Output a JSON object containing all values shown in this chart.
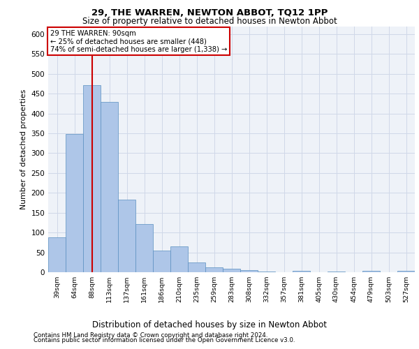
{
  "title1": "29, THE WARREN, NEWTON ABBOT, TQ12 1PP",
  "title2": "Size of property relative to detached houses in Newton Abbot",
  "xlabel": "Distribution of detached houses by size in Newton Abbot",
  "ylabel": "Number of detached properties",
  "footer1": "Contains HM Land Registry data © Crown copyright and database right 2024.",
  "footer2": "Contains public sector information licensed under the Open Government Licence v3.0.",
  "annotation_title": "29 THE WARREN: 90sqm",
  "annotation_line1": "← 25% of detached houses are smaller (448)",
  "annotation_line2": "74% of semi-detached houses are larger (1,338) →",
  "bar_color": "#aec6e8",
  "bar_edge_color": "#5a8fc0",
  "vline_color": "#cc0000",
  "vline_x": 2.0,
  "annotation_box_color": "#ffffff",
  "annotation_box_edge": "#cc0000",
  "grid_color": "#d0d8e8",
  "background_color": "#eef2f8",
  "categories": [
    "39sqm",
    "64sqm",
    "88sqm",
    "113sqm",
    "137sqm",
    "161sqm",
    "186sqm",
    "210sqm",
    "235sqm",
    "259sqm",
    "283sqm",
    "308sqm",
    "332sqm",
    "357sqm",
    "381sqm",
    "405sqm",
    "430sqm",
    "454sqm",
    "479sqm",
    "503sqm",
    "527sqm"
  ],
  "values": [
    88,
    348,
    472,
    430,
    183,
    122,
    55,
    65,
    25,
    12,
    8,
    5,
    1,
    0,
    4,
    0,
    1,
    0,
    4,
    0,
    4
  ],
  "ylim": [
    0,
    620
  ],
  "yticks": [
    0,
    50,
    100,
    150,
    200,
    250,
    300,
    350,
    400,
    450,
    500,
    550,
    600
  ]
}
